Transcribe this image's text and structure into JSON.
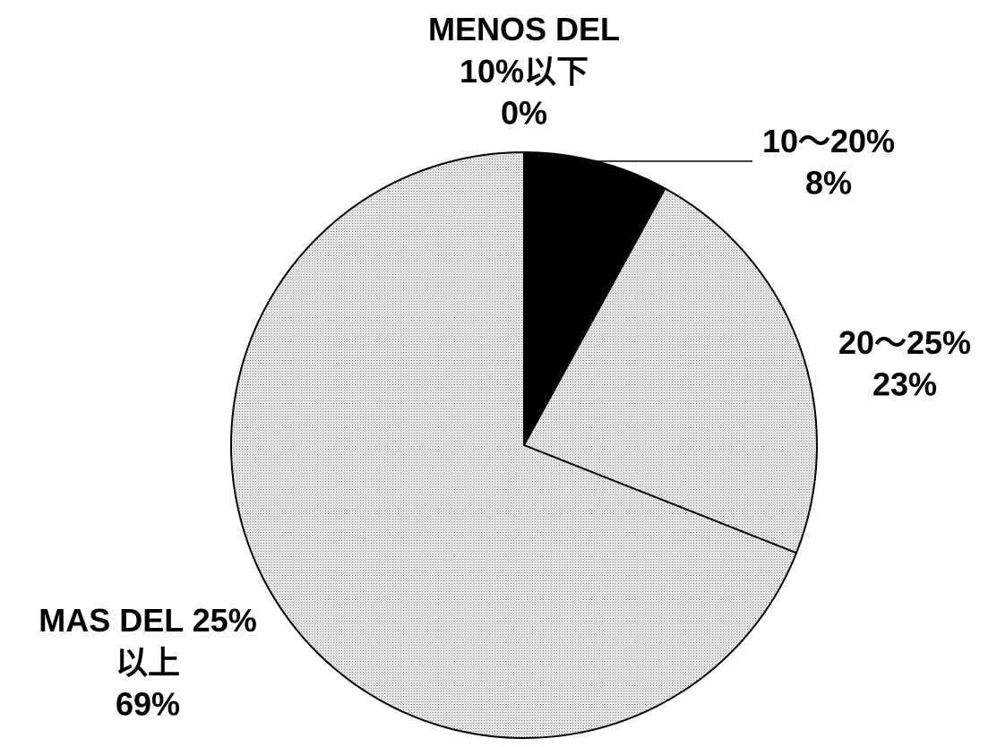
{
  "chart_data": {
    "type": "pie",
    "categories": [
      "MENOS DEL\n10%以下",
      "10〜20%",
      "20〜25%",
      "MAS DEL 25%\n以上"
    ],
    "values": [
      0,
      8,
      23,
      69
    ],
    "value_labels": [
      "0%",
      "8%",
      "23%",
      "69%"
    ],
    "colors": [
      "#d9d9d9",
      "#000000",
      "#d9d9d9",
      "#d9d9d9"
    ]
  }
}
